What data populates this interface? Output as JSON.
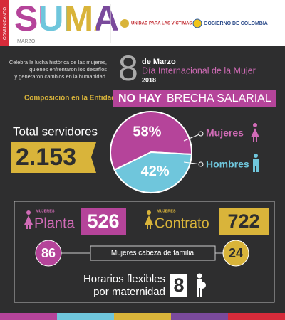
{
  "header": {
    "side_label": "COMUNICANDO",
    "title": "SUMA",
    "month": "MARZO",
    "logo_left": "UNIDAD PARA LAS VÍCTIMAS",
    "logo_right": "GOBIERNO DE COLOMBIA"
  },
  "intro": [
    "Celebra la lucha histórica de las mujeres,",
    "quienes enfrentaron los desafíos",
    "y generaron cambios en la humanidad."
  ],
  "date": {
    "day": "8",
    "month": "de Marzo",
    "event": "Día Internacional de la Mujer",
    "year": "2018"
  },
  "composition": {
    "label": "Composición en la Entidad",
    "banner_a": "NO HAY",
    "banner_b": "BRECHA SALARIAL"
  },
  "total": {
    "label": "Total servidores",
    "value": "2.153"
  },
  "pie": {
    "names": [
      "Mujeres",
      "Hombres"
    ],
    "values": [
      58,
      42
    ],
    "value_labels": [
      "58%",
      "42%"
    ],
    "colors": [
      "#b5449a",
      "#6fc6dc"
    ]
  },
  "details": {
    "planta": {
      "tag": "MUJERES",
      "label": "Planta",
      "value": "526"
    },
    "contrato": {
      "tag": "MUJERES",
      "label": "Contrato",
      "value": "722"
    },
    "cabeza": {
      "left": "86",
      "label": "Mujeres cabeza de familia",
      "right": "24"
    },
    "flex": {
      "line1": "Horarios flexibles",
      "line2": "por maternidad",
      "value": "8"
    }
  }
}
